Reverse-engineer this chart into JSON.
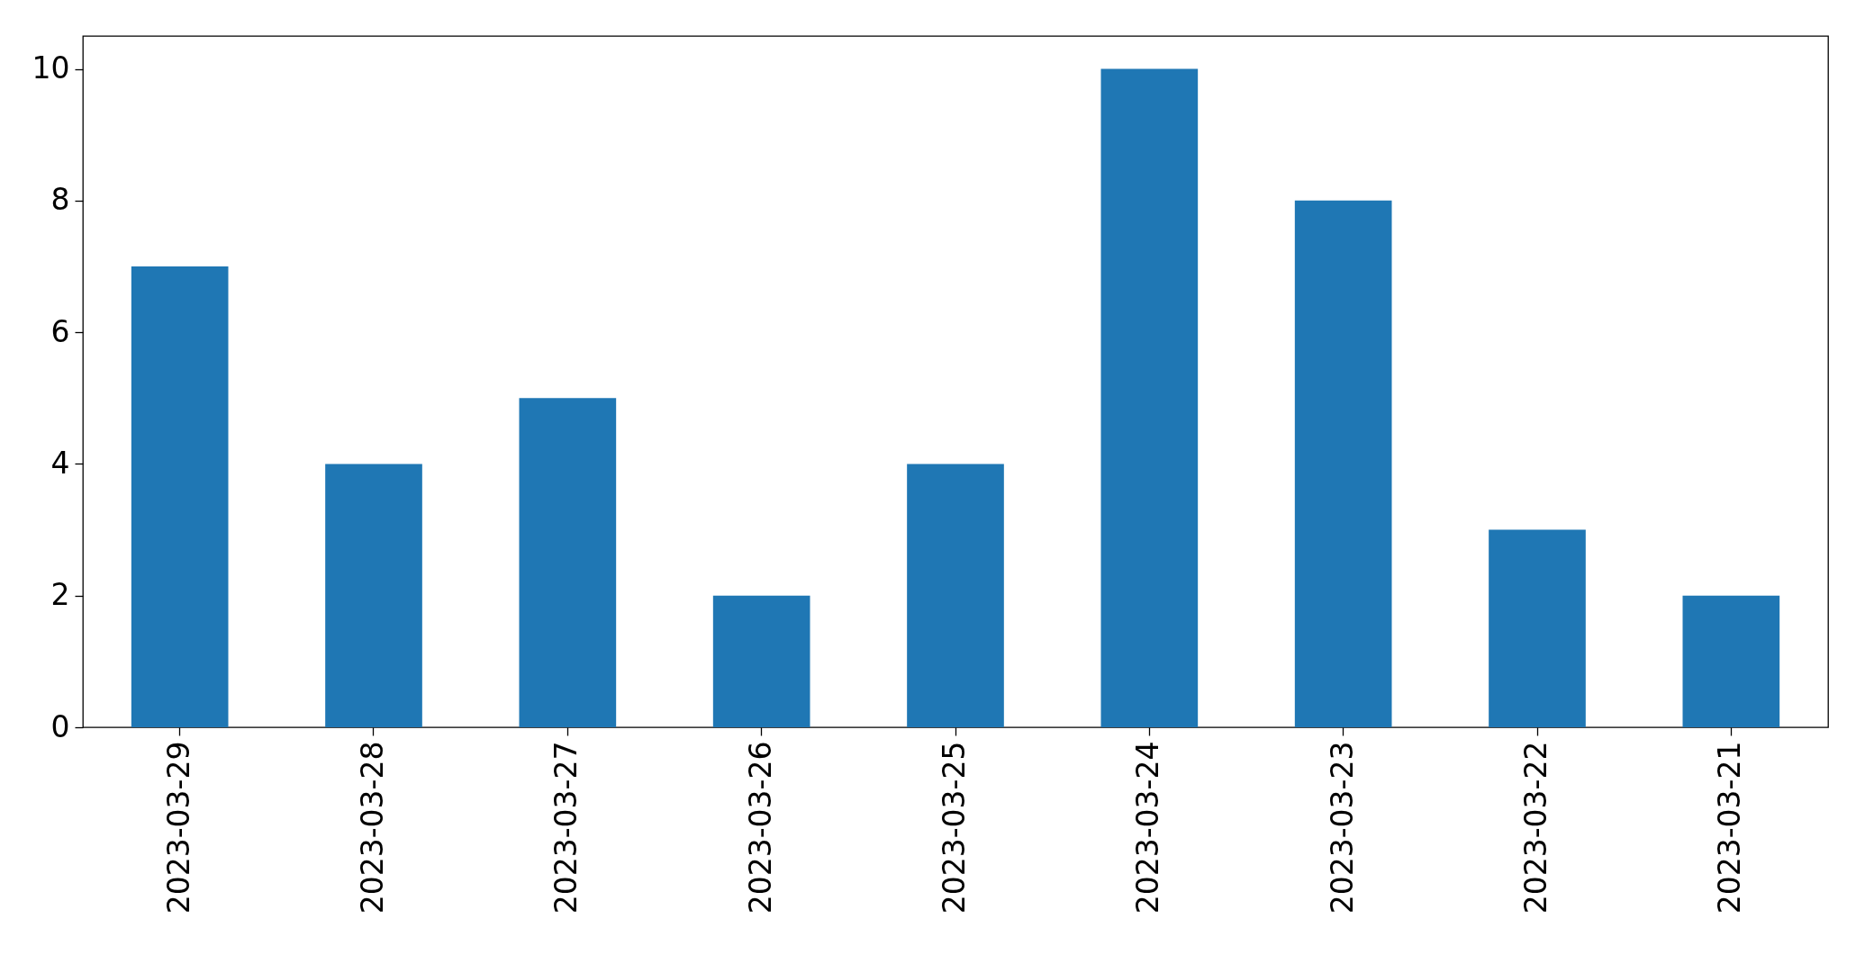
{
  "chart_data": {
    "type": "bar",
    "categories": [
      "2023-03-29",
      "2023-03-28",
      "2023-03-27",
      "2023-03-26",
      "2023-03-25",
      "2023-03-24",
      "2023-03-23",
      "2023-03-22",
      "2023-03-21"
    ],
    "values": [
      7,
      4,
      5,
      2,
      4,
      10,
      8,
      3,
      2
    ],
    "color": "#1f77b4",
    "ylim": [
      0,
      10.5
    ],
    "yticks": [
      0,
      2,
      4,
      6,
      8,
      10
    ],
    "grid": false
  }
}
